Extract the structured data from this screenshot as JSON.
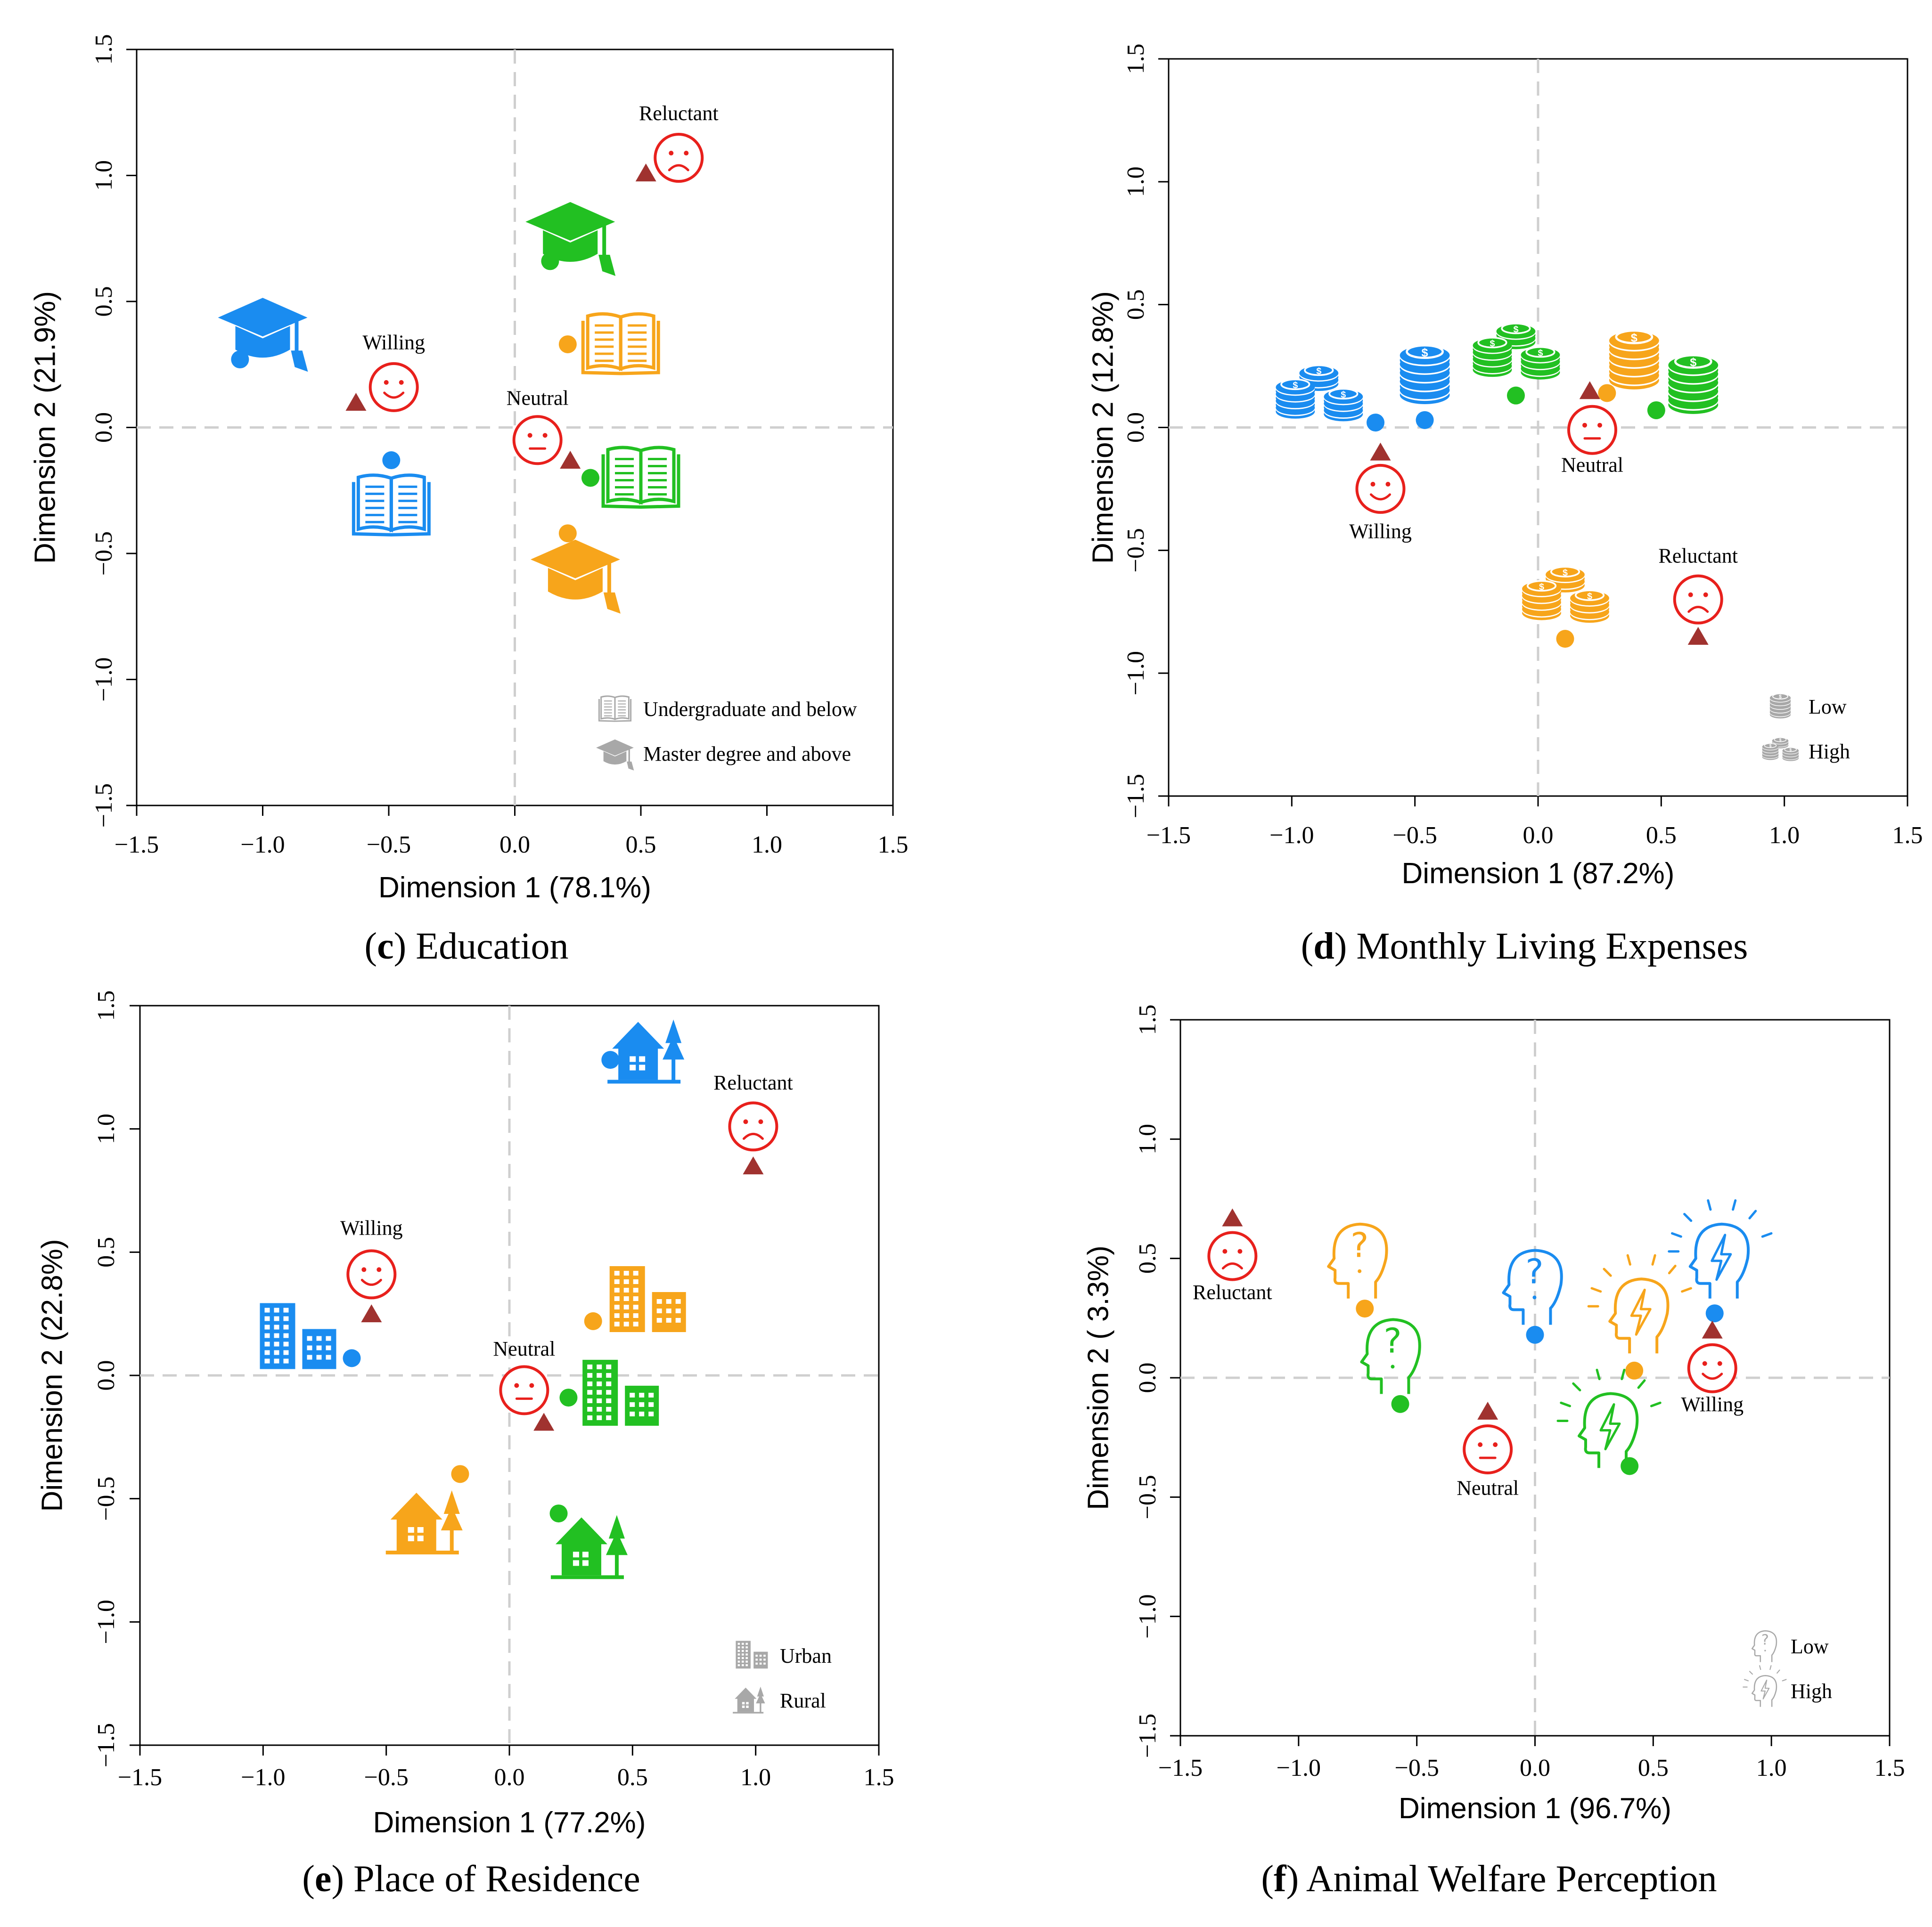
{
  "colors": {
    "blue": "#1a8cf0",
    "green": "#22c022",
    "orange": "#f7a51b",
    "red": "#e8201c",
    "triangle": "#a0322f",
    "grey": "#a8a8a8",
    "zero_line": "#cfcfcf"
  },
  "chart_data": [
    {
      "id": "c",
      "type": "scatter",
      "caption_letter": "c",
      "caption_text": "Education",
      "xlabel": "Dimension 1 (78.1%)",
      "ylabel": "Dimension 2 (21.9%)",
      "xlim": [
        -1.5,
        1.5
      ],
      "ylim": [
        -1.5,
        1.5
      ],
      "xticks": [
        "−1.5",
        "−1.0",
        "−0.5",
        "0.0",
        "0.5",
        "1.0",
        "1.5"
      ],
      "yticks": [
        "−1.5",
        "−1.0",
        "−0.5",
        "0.0",
        "0.5",
        "1.0",
        "1.5"
      ],
      "tick_values": [
        -1.5,
        -1.0,
        -0.5,
        0.0,
        0.5,
        1.0,
        1.5
      ],
      "points": [
        {
          "name": "blue-master",
          "x": -1.09,
          "y": 0.27,
          "color": "blue",
          "icon": "cap",
          "icon_x": -1.0,
          "icon_y": 0.38
        },
        {
          "name": "blue-undergrad",
          "x": -0.49,
          "y": -0.13,
          "color": "blue",
          "icon": "book",
          "icon_x": -0.49,
          "icon_y": -0.31
        },
        {
          "name": "green-master",
          "x": 0.14,
          "y": 0.66,
          "color": "green",
          "icon": "cap",
          "icon_x": 0.22,
          "icon_y": 0.76
        },
        {
          "name": "green-undergrad",
          "x": 0.3,
          "y": -0.2,
          "color": "green",
          "icon": "book",
          "icon_x": 0.5,
          "icon_y": -0.2
        },
        {
          "name": "orange-undergrad",
          "x": 0.21,
          "y": 0.33,
          "color": "orange",
          "icon": "book",
          "icon_x": 0.42,
          "icon_y": 0.33
        },
        {
          "name": "orange-master",
          "x": 0.21,
          "y": -0.42,
          "color": "orange",
          "icon": "cap",
          "icon_x": 0.24,
          "icon_y": -0.58
        }
      ],
      "attitudes": [
        {
          "label": "Willing",
          "x": -0.63,
          "y": 0.1,
          "face": "smile",
          "face_x": -0.48,
          "face_y": 0.16,
          "label_y": 0.31
        },
        {
          "label": "Neutral",
          "x": 0.22,
          "y": -0.13,
          "face": "neutral",
          "face_x": 0.09,
          "face_y": -0.05,
          "label_y": 0.09
        },
        {
          "label": "Reluctant",
          "x": 0.52,
          "y": 1.01,
          "face": "frown",
          "face_x": 0.65,
          "face_y": 1.07,
          "label_y": 1.22
        }
      ],
      "legend": [
        {
          "icon": "book",
          "label": "Undergraduate and below"
        },
        {
          "icon": "cap",
          "label": "Master degree and above"
        }
      ]
    },
    {
      "id": "d",
      "type": "scatter",
      "caption_letter": "d",
      "caption_text": "Monthly Living Expenses",
      "xlabel": "Dimension 1 (87.2%)",
      "ylabel": "Dimension 2 (12.8%)",
      "xlim": [
        -1.5,
        1.5
      ],
      "ylim": [
        -1.5,
        1.5
      ],
      "xticks": [
        "−1.5",
        "−1.0",
        "−0.5",
        "0.0",
        "0.5",
        "1.0",
        "1.5"
      ],
      "yticks": [
        "−1.5",
        "−1.0",
        "−0.5",
        "0.0",
        "0.5",
        "1.0",
        "1.5"
      ],
      "tick_values": [
        -1.5,
        -1.0,
        -0.5,
        0.0,
        0.5,
        1.0,
        1.5
      ],
      "points": [
        {
          "name": "blue-high",
          "x": -0.66,
          "y": 0.02,
          "color": "blue",
          "icon": "coins-cluster",
          "icon_x": -0.89,
          "icon_y": 0.12
        },
        {
          "name": "blue-low",
          "x": -0.46,
          "y": 0.03,
          "color": "blue",
          "icon": "coins",
          "icon_x": -0.46,
          "icon_y": 0.21
        },
        {
          "name": "green-high",
          "x": -0.09,
          "y": 0.13,
          "color": "green",
          "icon": "coins-cluster",
          "icon_x": -0.09,
          "icon_y": 0.29
        },
        {
          "name": "green-low",
          "x": 0.48,
          "y": 0.07,
          "color": "green",
          "icon": "coins",
          "icon_x": 0.63,
          "icon_y": 0.17
        },
        {
          "name": "orange-low",
          "x": 0.28,
          "y": 0.14,
          "color": "orange",
          "icon": "coins",
          "icon_x": 0.39,
          "icon_y": 0.27
        },
        {
          "name": "orange-high",
          "x": 0.11,
          "y": -0.86,
          "color": "orange",
          "icon": "coins-cluster",
          "icon_x": 0.11,
          "icon_y": -0.7
        }
      ],
      "attitudes": [
        {
          "label": "Willing",
          "x": -0.64,
          "y": -0.1,
          "face": "smile",
          "face_x": -0.64,
          "face_y": -0.25,
          "label_y": -0.45
        },
        {
          "label": "Neutral",
          "x": 0.21,
          "y": 0.15,
          "face": "neutral",
          "face_x": 0.22,
          "face_y": -0.01,
          "label_y": -0.18
        },
        {
          "label": "Reluctant",
          "x": 0.65,
          "y": -0.85,
          "face": "frown",
          "face_x": 0.65,
          "face_y": -0.7,
          "label_y": -0.55
        }
      ],
      "legend": [
        {
          "icon": "coins",
          "label": "Low"
        },
        {
          "icon": "coins-cluster",
          "label": "High"
        }
      ]
    },
    {
      "id": "e",
      "type": "scatter",
      "caption_letter": "e",
      "caption_text": "Place of Residence",
      "xlabel": "Dimension 1 (77.2%)",
      "ylabel": "Dimension 2 (22.8%)",
      "xlim": [
        -1.5,
        1.5
      ],
      "ylim": [
        -1.5,
        1.5
      ],
      "xticks": [
        "−1.5",
        "−1.0",
        "−0.5",
        "0.0",
        "0.5",
        "1.0",
        "1.5"
      ],
      "yticks": [
        "−1.5",
        "−1.0",
        "−0.5",
        "0.0",
        "0.5",
        "1.0",
        "1.5"
      ],
      "tick_values": [
        -1.5,
        -1.0,
        -0.5,
        0.0,
        0.5,
        1.0,
        1.5
      ],
      "points": [
        {
          "name": "blue-rural",
          "x": 0.41,
          "y": 1.28,
          "color": "blue",
          "icon": "house",
          "icon_x": 0.58,
          "icon_y": 1.31
        },
        {
          "name": "blue-urban",
          "x": -0.64,
          "y": 0.07,
          "color": "blue",
          "icon": "buildings",
          "icon_x": -0.86,
          "icon_y": 0.15
        },
        {
          "name": "orange-urban",
          "x": 0.34,
          "y": 0.22,
          "color": "orange",
          "icon": "buildings",
          "icon_x": 0.56,
          "icon_y": 0.3
        },
        {
          "name": "green-urban",
          "x": 0.24,
          "y": -0.09,
          "color": "green",
          "icon": "buildings",
          "icon_x": 0.45,
          "icon_y": -0.08
        },
        {
          "name": "orange-rural",
          "x": -0.2,
          "y": -0.4,
          "color": "orange",
          "icon": "house",
          "icon_x": -0.32,
          "icon_y": -0.6
        },
        {
          "name": "green-rural",
          "x": 0.2,
          "y": -0.56,
          "color": "green",
          "icon": "house",
          "icon_x": 0.35,
          "icon_y": -0.7
        }
      ],
      "attitudes": [
        {
          "label": "Willing",
          "x": -0.56,
          "y": 0.25,
          "face": "smile",
          "face_x": -0.56,
          "face_y": 0.41,
          "label_y": 0.57
        },
        {
          "label": "Neutral",
          "x": 0.14,
          "y": -0.19,
          "face": "neutral",
          "face_x": 0.06,
          "face_y": -0.06,
          "label_y": 0.08
        },
        {
          "label": "Reluctant",
          "x": 0.99,
          "y": 0.85,
          "face": "frown",
          "face_x": 0.99,
          "face_y": 1.01,
          "label_y": 1.16
        }
      ],
      "legend": [
        {
          "icon": "buildings",
          "label": "Urban"
        },
        {
          "icon": "house",
          "label": "Rural"
        }
      ]
    },
    {
      "id": "f",
      "type": "scatter",
      "caption_letter": "f",
      "caption_text": "Animal Welfare Perception",
      "xlabel": "Dimension 1 (96.7%)",
      "ylabel": "Dimension 2 ( 3.3%)",
      "xlim": [
        -1.5,
        1.5
      ],
      "ylim": [
        -1.5,
        1.5
      ],
      "xticks": [
        "−1.5",
        "−1.0",
        "−0.5",
        "0.0",
        "0.5",
        "1.0",
        "1.5"
      ],
      "yticks": [
        "−1.5",
        "−1.0",
        "−0.5",
        "0.0",
        "0.5",
        "1.0",
        "1.5"
      ],
      "tick_values": [
        -1.5,
        -1.0,
        -0.5,
        0.0,
        0.5,
        1.0,
        1.5
      ],
      "points": [
        {
          "name": "orange-low",
          "x": -0.72,
          "y": 0.29,
          "color": "orange",
          "icon": "head-question",
          "icon_x": -0.77,
          "icon_y": 0.49
        },
        {
          "name": "green-low",
          "x": -0.57,
          "y": -0.11,
          "color": "green",
          "icon": "head-question",
          "icon_x": -0.63,
          "icon_y": 0.09
        },
        {
          "name": "blue-low",
          "x": 0.0,
          "y": 0.18,
          "color": "blue",
          "icon": "head-question",
          "icon_x": -0.03,
          "icon_y": 0.38
        },
        {
          "name": "orange-high",
          "x": 0.42,
          "y": 0.03,
          "color": "orange",
          "icon": "head-bolt",
          "icon_x": 0.42,
          "icon_y": 0.26
        },
        {
          "name": "green-high",
          "x": 0.4,
          "y": -0.37,
          "color": "green",
          "icon": "head-bolt",
          "icon_x": 0.29,
          "icon_y": -0.22
        },
        {
          "name": "blue-high",
          "x": 0.76,
          "y": 0.27,
          "color": "blue",
          "icon": "head-bolt",
          "icon_x": 0.76,
          "icon_y": 0.49
        }
      ],
      "attitudes": [
        {
          "label": "Willing",
          "x": 0.75,
          "y": 0.2,
          "face": "smile",
          "face_x": 0.75,
          "face_y": 0.04,
          "label_y": -0.14
        },
        {
          "label": "Neutral",
          "x": -0.2,
          "y": -0.14,
          "face": "neutral",
          "face_x": -0.2,
          "face_y": -0.3,
          "label_y": -0.49
        },
        {
          "label": "Reluctant",
          "x": -1.28,
          "y": 0.67,
          "face": "frown",
          "face_x": -1.28,
          "face_y": 0.51,
          "label_y": 0.33
        }
      ],
      "legend": [
        {
          "icon": "head-question",
          "label": "Low"
        },
        {
          "icon": "head-bolt",
          "label": "High"
        }
      ]
    }
  ]
}
